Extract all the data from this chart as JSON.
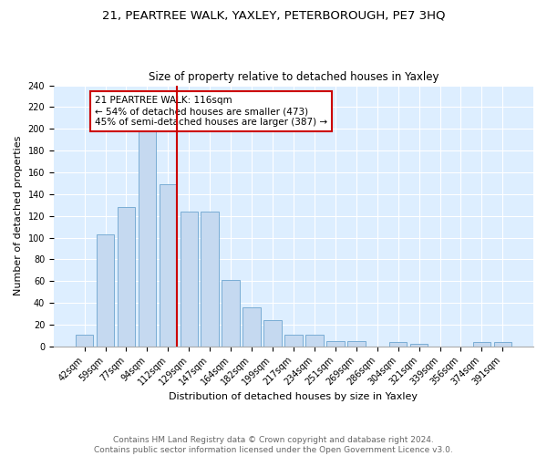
{
  "title": "21, PEARTREE WALK, YAXLEY, PETERBOROUGH, PE7 3HQ",
  "subtitle": "Size of property relative to detached houses in Yaxley",
  "xlabel": "Distribution of detached houses by size in Yaxley",
  "ylabel": "Number of detached properties",
  "categories": [
    "42sqm",
    "59sqm",
    "77sqm",
    "94sqm",
    "112sqm",
    "129sqm",
    "147sqm",
    "164sqm",
    "182sqm",
    "199sqm",
    "217sqm",
    "234sqm",
    "251sqm",
    "269sqm",
    "286sqm",
    "304sqm",
    "321sqm",
    "339sqm",
    "356sqm",
    "374sqm",
    "391sqm"
  ],
  "values": [
    11,
    103,
    128,
    198,
    149,
    124,
    124,
    61,
    36,
    24,
    11,
    11,
    5,
    5,
    0,
    4,
    2,
    0,
    0,
    4,
    4
  ],
  "bar_color": "#c5d9f0",
  "bar_edge_color": "#7aadd4",
  "vline_color": "#cc0000",
  "vline_x": 4.43,
  "annotation_text": "21 PEARTREE WALK: 116sqm\n← 54% of detached houses are smaller (473)\n45% of semi-detached houses are larger (387) →",
  "annotation_box_color": "white",
  "annotation_box_edge_color": "#cc0000",
  "ylim": [
    0,
    240
  ],
  "yticks": [
    0,
    20,
    40,
    60,
    80,
    100,
    120,
    140,
    160,
    180,
    200,
    220,
    240
  ],
  "footer_text": "Contains HM Land Registry data © Crown copyright and database right 2024.\nContains public sector information licensed under the Open Government Licence v3.0.",
  "plot_bg_color": "#ddeeff",
  "title_fontsize": 9.5,
  "subtitle_fontsize": 8.5,
  "xlabel_fontsize": 8,
  "ylabel_fontsize": 8,
  "tick_fontsize": 7,
  "annot_fontsize": 7.5,
  "footer_fontsize": 6.5
}
